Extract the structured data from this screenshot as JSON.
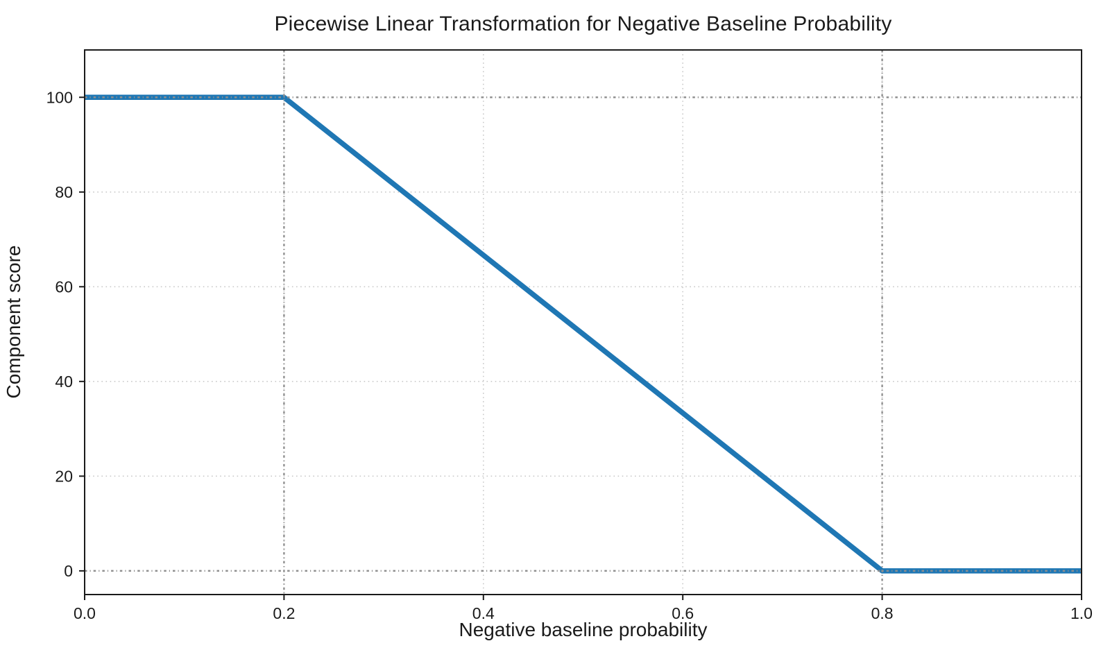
{
  "figure": {
    "background": "#ffffff"
  },
  "chart_data": {
    "type": "line",
    "title": "Piecewise Linear Transformation for Negative Baseline Probability",
    "xlabel": "Negative baseline probability",
    "ylabel": "Component score",
    "xlim": [
      0,
      1
    ],
    "ylim": [
      -5,
      110
    ],
    "xticks": {
      "values": [
        0,
        0.2,
        0.4,
        0.6,
        0.8,
        1.0
      ],
      "labels": [
        "0.0",
        "0.2",
        "0.4",
        "0.6",
        "0.8",
        "1.0"
      ]
    },
    "yticks": {
      "values": [
        0,
        20,
        40,
        60,
        80,
        100
      ],
      "labels": [
        "0",
        "20",
        "40",
        "60",
        "80",
        "100"
      ]
    },
    "grid": {
      "visible": true,
      "line_style": "dotted",
      "color": "#c9c9c9",
      "x_values": [
        0.2,
        0.4,
        0.6,
        0.8
      ],
      "y_values": [
        20,
        40,
        60,
        80
      ]
    },
    "reference_lines": {
      "line_style": "dash-dot",
      "color": "#8f8f8f",
      "x_values": [
        0.2,
        0.8
      ],
      "y_values": [
        0,
        100
      ]
    },
    "series": [
      {
        "name": "Component score",
        "color": "#1f77b4",
        "line_width": 7.5,
        "points": [
          [
            0,
            100
          ],
          [
            0.2,
            100
          ],
          [
            0.8,
            0
          ],
          [
            1.0,
            0
          ]
        ]
      }
    ],
    "legend": {
      "visible": false
    },
    "tick_font_size": 23,
    "text_color": "#1a1a1a",
    "spine_color": "#1a1a1a"
  }
}
